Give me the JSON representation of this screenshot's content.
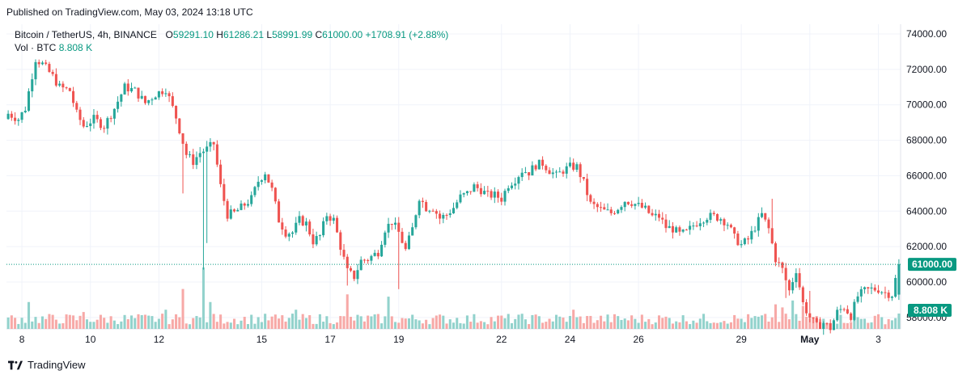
{
  "header": {
    "published": "Published on TradingView.com, May 03, 2024 13:18 UTC"
  },
  "legend": {
    "symbol": "Bitcoin / TetherUS, 4h, BINANCE",
    "open_label": "O",
    "open": "59291.10",
    "high_label": "H",
    "high": "61286.21",
    "low_label": "L",
    "low": "58991.99",
    "close_label": "C",
    "close": "61000.00",
    "change": "+1708.91 (+2.88%)",
    "vol_label": "Vol · BTC",
    "vol_value": "8.808 K"
  },
  "footer": {
    "brand": "TradingView"
  },
  "colors": {
    "up": "#26a69a",
    "down": "#ef5350",
    "up_vol": "#92d2cc",
    "down_vol": "#f7a9a7",
    "grid": "#f0f3fa",
    "price_tag": "#089981"
  },
  "chart_data": {
    "type": "candlestick",
    "interval": "4h",
    "y_axis": {
      "ticks": [
        "74000.00",
        "72000.00",
        "70000.00",
        "68000.00",
        "66000.00",
        "64000.00",
        "62000.00",
        "60000.00",
        "58000.00"
      ],
      "range": [
        56900,
        74000
      ],
      "current_price": 61000,
      "current_price_label": "61000.00",
      "volume_label": "8.808 K"
    },
    "x_axis": {
      "ticks": [
        {
          "label": "8",
          "index": 4
        },
        {
          "label": "10",
          "index": 24
        },
        {
          "label": "12",
          "index": 44
        },
        {
          "label": "15",
          "index": 74
        },
        {
          "label": "17",
          "index": 94
        },
        {
          "label": "19",
          "index": 114
        },
        {
          "label": "22",
          "index": 144
        },
        {
          "label": "24",
          "index": 164
        },
        {
          "label": "26",
          "index": 184
        },
        {
          "label": "29",
          "index": 214
        },
        {
          "label": "May",
          "index": 234
        },
        {
          "label": "3",
          "index": 254
        }
      ],
      "bar_count": 261
    },
    "grid": true,
    "anchors": [
      [
        0,
        69500
      ],
      [
        3,
        69200
      ],
      [
        5,
        69800
      ],
      [
        8,
        72600
      ],
      [
        10,
        72300
      ],
      [
        13,
        71600
      ],
      [
        15,
        71000
      ],
      [
        18,
        70800
      ],
      [
        20,
        69500
      ],
      [
        22,
        68800
      ],
      [
        25,
        69200
      ],
      [
        28,
        68800
      ],
      [
        31,
        69800
      ],
      [
        34,
        71000
      ],
      [
        37,
        70800
      ],
      [
        40,
        70100
      ],
      [
        43,
        70600
      ],
      [
        46,
        70900
      ],
      [
        49,
        69300
      ],
      [
        52,
        67200
      ],
      [
        54,
        66800
      ],
      [
        56,
        67300
      ],
      [
        58,
        67500
      ],
      [
        60,
        67800
      ],
      [
        62,
        65400
      ],
      [
        64,
        63800
      ],
      [
        66,
        63900
      ],
      [
        68,
        64200
      ],
      [
        71,
        64700
      ],
      [
        73,
        65700
      ],
      [
        75,
        66200
      ],
      [
        77,
        65200
      ],
      [
        79,
        63500
      ],
      [
        81,
        62800
      ],
      [
        83,
        62800
      ],
      [
        85,
        63500
      ],
      [
        87,
        63300
      ],
      [
        89,
        62300
      ],
      [
        91,
        62600
      ],
      [
        93,
        63800
      ],
      [
        95,
        63500
      ],
      [
        97,
        62000
      ],
      [
        99,
        60600
      ],
      [
        101,
        60300
      ],
      [
        103,
        61200
      ],
      [
        105,
        61300
      ],
      [
        108,
        61700
      ],
      [
        110,
        63000
      ],
      [
        112,
        63400
      ],
      [
        114,
        62800
      ],
      [
        116,
        61800
      ],
      [
        118,
        63000
      ],
      [
        120,
        64800
      ],
      [
        122,
        64200
      ],
      [
        124,
        64200
      ],
      [
        126,
        63600
      ],
      [
        128,
        63800
      ],
      [
        130,
        64200
      ],
      [
        132,
        64800
      ],
      [
        134,
        65000
      ],
      [
        136,
        65400
      ],
      [
        138,
        65200
      ],
      [
        140,
        64900
      ],
      [
        142,
        64900
      ],
      [
        144,
        64700
      ],
      [
        146,
        65500
      ],
      [
        148,
        65800
      ],
      [
        150,
        66300
      ],
      [
        152,
        66200
      ],
      [
        154,
        66600
      ],
      [
        156,
        66700
      ],
      [
        158,
        66300
      ],
      [
        160,
        66000
      ],
      [
        162,
        66300
      ],
      [
        164,
        66500
      ],
      [
        166,
        66500
      ],
      [
        168,
        65600
      ],
      [
        170,
        64400
      ],
      [
        172,
        64200
      ],
      [
        174,
        64000
      ],
      [
        176,
        63900
      ],
      [
        178,
        64200
      ],
      [
        180,
        64600
      ],
      [
        182,
        64500
      ],
      [
        184,
        64300
      ],
      [
        186,
        64100
      ],
      [
        188,
        63700
      ],
      [
        190,
        63700
      ],
      [
        192,
        63100
      ],
      [
        194,
        63000
      ],
      [
        196,
        62700
      ],
      [
        198,
        62800
      ],
      [
        200,
        63200
      ],
      [
        202,
        63500
      ],
      [
        204,
        63700
      ],
      [
        206,
        63700
      ],
      [
        208,
        63600
      ],
      [
        210,
        63300
      ],
      [
        212,
        62500
      ],
      [
        214,
        62100
      ],
      [
        216,
        62400
      ],
      [
        218,
        63100
      ],
      [
        220,
        63800
      ],
      [
        222,
        63000
      ],
      [
        224,
        61300
      ],
      [
        226,
        60700
      ],
      [
        228,
        59500
      ],
      [
        230,
        60700
      ],
      [
        232,
        58800
      ],
      [
        234,
        58000
      ],
      [
        236,
        57500
      ],
      [
        238,
        57700
      ],
      [
        240,
        57400
      ],
      [
        242,
        58300
      ],
      [
        244,
        58600
      ],
      [
        246,
        58100
      ],
      [
        248,
        59200
      ],
      [
        250,
        59500
      ],
      [
        252,
        59600
      ],
      [
        254,
        59600
      ],
      [
        256,
        59400
      ],
      [
        258,
        59300
      ],
      [
        260,
        61000
      ]
    ],
    "volume_spikes": [
      [
        6,
        0.35
      ],
      [
        22,
        0.22
      ],
      [
        46,
        0.25
      ],
      [
        51,
        0.52
      ],
      [
        57,
        0.8
      ],
      [
        59,
        0.35
      ],
      [
        84,
        0.25
      ],
      [
        99,
        0.45
      ],
      [
        111,
        0.42
      ],
      [
        165,
        0.25
      ],
      [
        224,
        0.32
      ],
      [
        226,
        0.28
      ],
      [
        229,
        0.37
      ],
      [
        232,
        0.3
      ]
    ]
  }
}
